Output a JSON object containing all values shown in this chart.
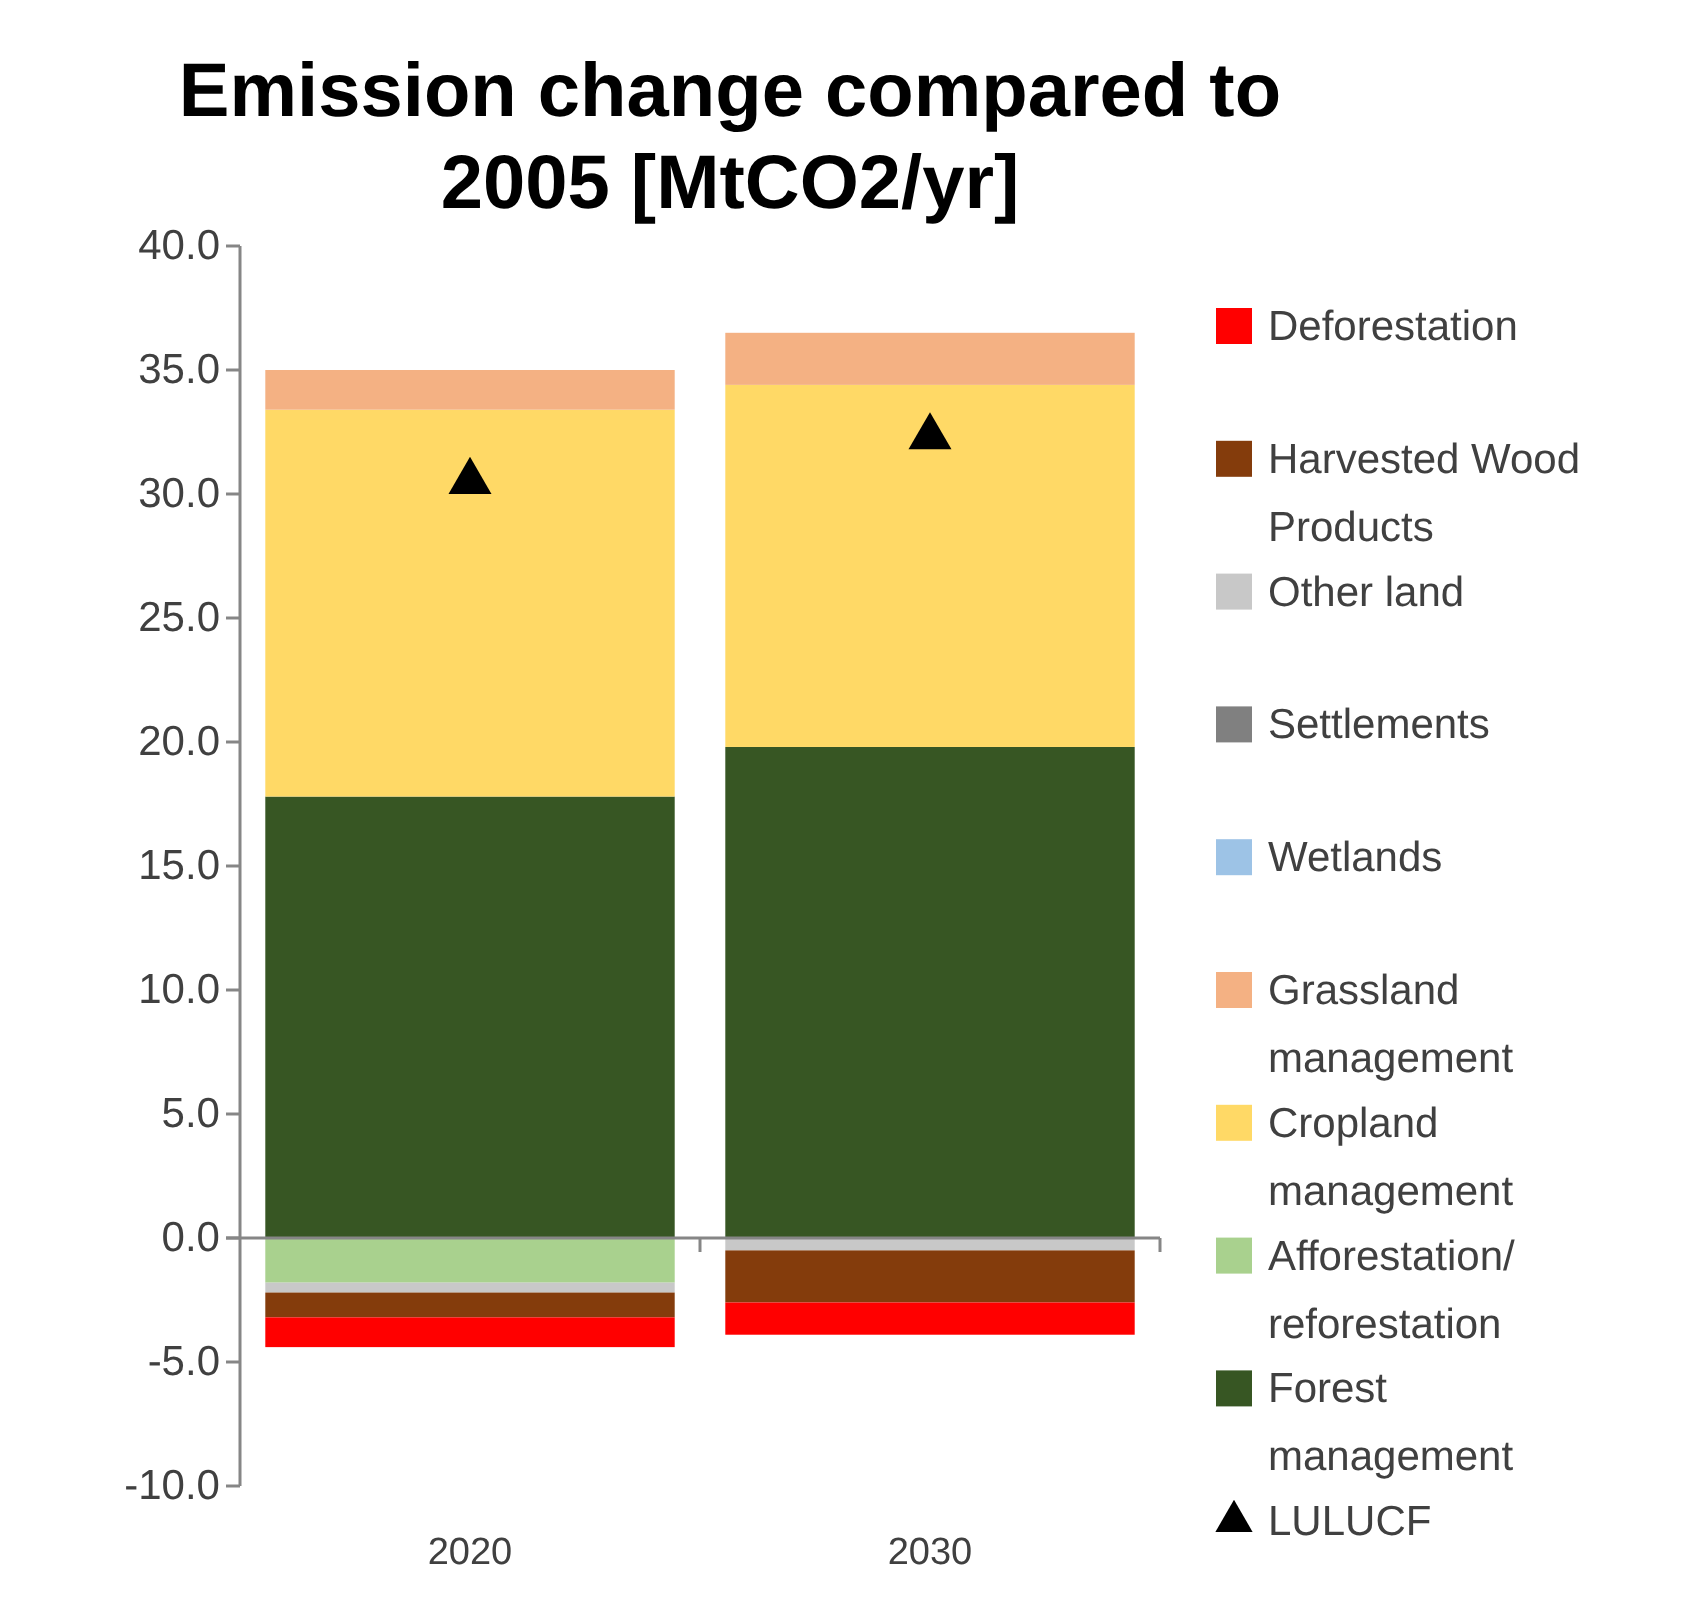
{
  "chart_data": {
    "type": "bar",
    "stacked": true,
    "title": "Emission change compared to 2005 [MtCO2/yr]",
    "categories": [
      "2020",
      "2030"
    ],
    "series": [
      {
        "name": "Forest management",
        "color": "#375623",
        "values": [
          17.8,
          19.8
        ]
      },
      {
        "name": "Afforestation/ reforestation",
        "color": "#a9d18e",
        "values": [
          -1.8,
          0
        ]
      },
      {
        "name": "Cropland management",
        "color": "#ffd966",
        "values": [
          15.6,
          14.6
        ]
      },
      {
        "name": "Grassland management",
        "color": "#f4b183",
        "values": [
          1.6,
          2.1
        ]
      },
      {
        "name": "Wetlands",
        "color": "#9dc3e6",
        "values": [
          0,
          0
        ]
      },
      {
        "name": "Settlements",
        "color": "#808080",
        "values": [
          0,
          0
        ]
      },
      {
        "name": "Other land",
        "color": "#c8c8c8",
        "values": [
          -0.4,
          -0.5
        ]
      },
      {
        "name": "Harvested Wood Products",
        "color": "#843c0c",
        "values": [
          -1.0,
          -2.1
        ]
      },
      {
        "name": "Deforestation",
        "color": "#ff0000",
        "values": [
          -1.2,
          -1.3
        ]
      },
      {
        "name": "LULUCF",
        "type": "scatter",
        "color": "#000000",
        "marker": "triangle",
        "values": [
          30.5,
          32.3
        ]
      }
    ],
    "ylim": [
      -10,
      40
    ],
    "yticks": [
      {
        "value": -10,
        "label": "-10.0"
      },
      {
        "value": -5,
        "label": "-5.0"
      },
      {
        "value": 0,
        "label": "0.0"
      },
      {
        "value": 5,
        "label": "5.0"
      },
      {
        "value": 10,
        "label": "10.0"
      },
      {
        "value": 15,
        "label": "15.0"
      },
      {
        "value": 20,
        "label": "20.0"
      },
      {
        "value": 25,
        "label": "25.0"
      },
      {
        "value": 30,
        "label": "30.0"
      },
      {
        "value": 35,
        "label": "35.0"
      },
      {
        "value": 40,
        "label": "40.0"
      }
    ],
    "legend": "right"
  }
}
